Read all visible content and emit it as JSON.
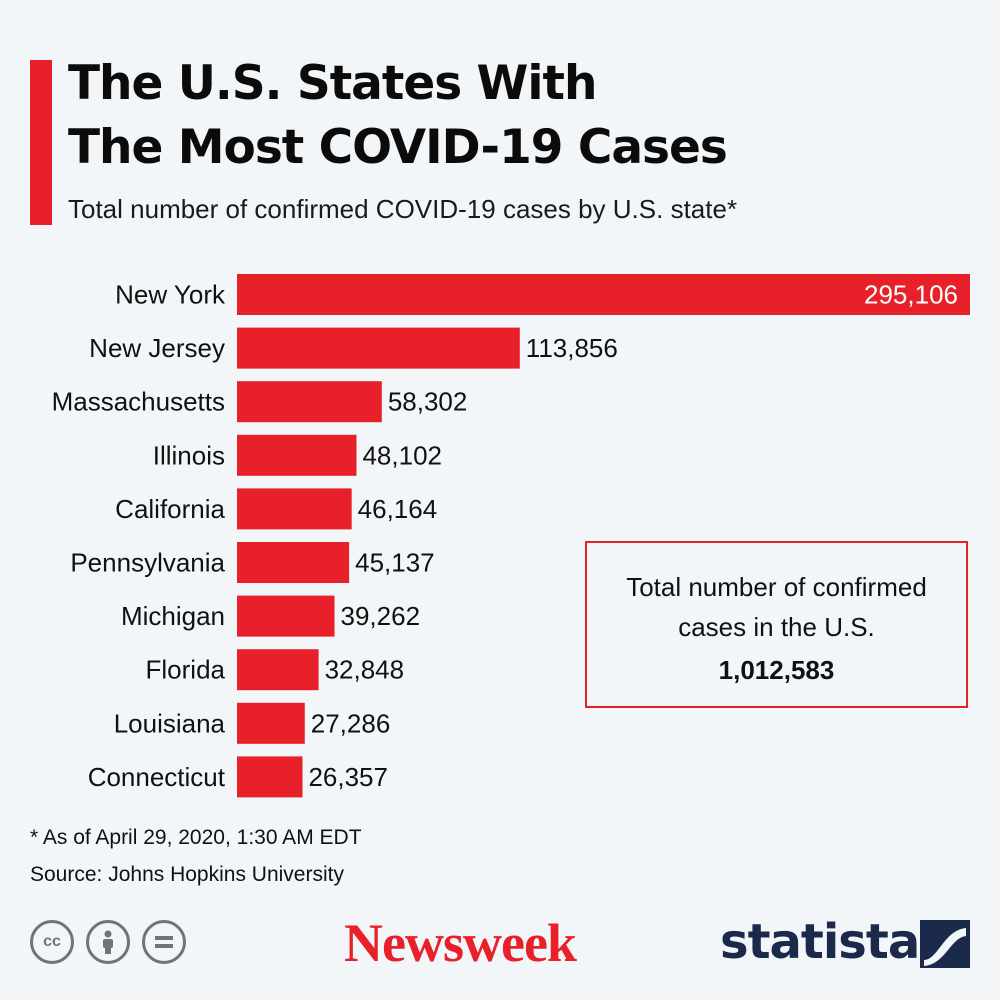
{
  "header": {
    "title_line1": "The U.S. States With",
    "title_line2": "The Most COVID-19 Cases",
    "subtitle": "Total number of confirmed COVID-19 cases by U.S. state*"
  },
  "colors": {
    "accent": "#e8202a",
    "bar_label_inside": "#ffffff",
    "text": "#111111",
    "statista_navy": "#1b2a4a"
  },
  "chart_data": {
    "type": "bar",
    "orientation": "horizontal",
    "title": "Total number of confirmed COVID-19 cases by U.S. state",
    "categories": [
      "New York",
      "New Jersey",
      "Massachusetts",
      "Illinois",
      "California",
      "Pennsylvania",
      "Michigan",
      "Florida",
      "Louisiana",
      "Connecticut"
    ],
    "values": [
      295106,
      113856,
      58302,
      48102,
      46164,
      45137,
      39262,
      32848,
      27286,
      26357
    ],
    "value_labels": [
      "295,106",
      "113,856",
      "58,302",
      "48,102",
      "46,164",
      "45,137",
      "39,262",
      "32,848",
      "27,286",
      "26,357"
    ],
    "xlim": [
      0,
      295106
    ]
  },
  "info_box": {
    "label": "Total number of confirmed cases in the U.S.",
    "value": "1,012,583"
  },
  "footer": {
    "note": "* As of April 29, 2020, 1:30 AM EDT",
    "source": "Source: Johns Hopkins University",
    "cc_label": "cc",
    "brand_newsweek": "Newsweek",
    "brand_statista": "statista"
  }
}
